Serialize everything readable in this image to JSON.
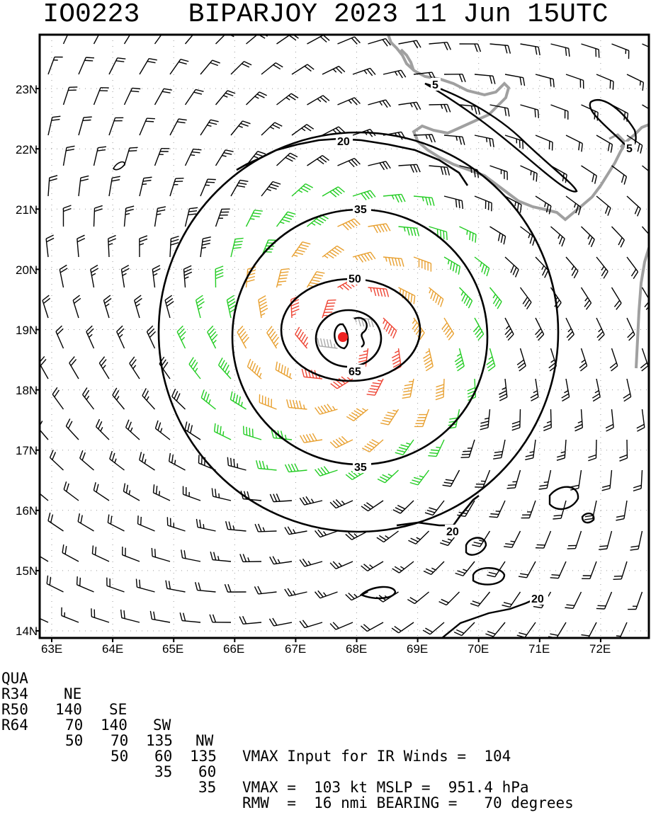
{
  "title": "IO0223   BIPARJOY 2023 11 Jun 15UTC",
  "lat_labels": [
    "14N",
    "15N",
    "16N",
    "17N",
    "18N",
    "19N",
    "20N",
    "21N",
    "22N",
    "23N"
  ],
  "lon_labels": [
    "63E",
    "64E",
    "65E",
    "66E",
    "67E",
    "68E",
    "69E",
    "70E",
    "71E",
    "72E"
  ],
  "contour_labels": {
    "c5a": "5",
    "c5b": "5",
    "c20a": "20",
    "c20b": "20",
    "c20c": "20",
    "c35a": "35",
    "c35b": "35",
    "c50": "50",
    "c65": "65"
  },
  "storm": {
    "id": "IO0223",
    "name": "BIPARJOY",
    "center_lat": 18.9,
    "center_lon": 67.8,
    "center_color": "#ee2222"
  },
  "wind_colors": {
    "calm": "#000000",
    "gale_34kt": "#22cc22",
    "storm_50kt": "#e8a030",
    "hurricane_64kt": "#ee4433",
    "eye": "#aaaaaa"
  },
  "land_color": "#a0a0a0",
  "quadrant_table": {
    "header": [
      "QUA",
      "NE",
      "SE",
      "SW",
      "NW"
    ],
    "rows": [
      [
        "R34",
        "140",
        "140",
        "135",
        "135"
      ],
      [
        "R50",
        "70",
        "70",
        "60",
        "60"
      ],
      [
        "R64",
        "50",
        "50",
        "35",
        "35"
      ]
    ]
  },
  "stats": {
    "line1": "VMAX Input for IR Winds =  104",
    "line2": "VMAX =  103 kt MSLP =  951.4 hPa",
    "line3": "RMW  =  16 nmi BEARING =   70 degrees"
  }
}
